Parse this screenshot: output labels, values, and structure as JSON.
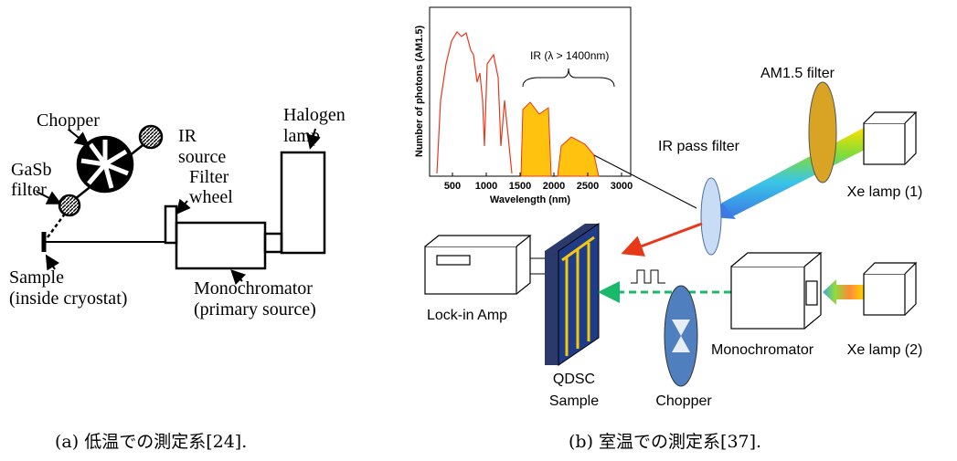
{
  "panel_a": {
    "chopper": "Chopper",
    "ir_source": [
      "IR",
      "source"
    ],
    "halogen_lamp": [
      "Halogen",
      "lamp"
    ],
    "gasb_filter": [
      "GaSb",
      "filter"
    ],
    "filter_wheel": [
      "Filter",
      "wheel"
    ],
    "sample": [
      "Sample",
      "(inside cryostat)"
    ],
    "monochromator": [
      "Monochromator",
      "(primary source)"
    ],
    "caption": "(a) 低温での測定系[24]."
  },
  "panel_b": {
    "inset": {
      "y_label": "Number of photons (AM1.5)",
      "x_label": "Wavelength (nm)",
      "xticks": [
        500,
        1000,
        1500,
        2000,
        2500,
        3000
      ],
      "annotation": "IR (λ > 1400nm)"
    },
    "am15_filter": "AM1.5 filter",
    "ir_pass_filter": "IR pass filter",
    "xe_lamp_1": "Xe lamp (1)",
    "lock_in_amp": "Lock-in Amp",
    "qdsc_sample": [
      "QDSC",
      "Sample"
    ],
    "monochromator": "Monochromator",
    "xe_lamp_2": "Xe lamp (2)",
    "chopper": "Chopper",
    "caption": "(b) 室温での測定系[37]."
  }
}
